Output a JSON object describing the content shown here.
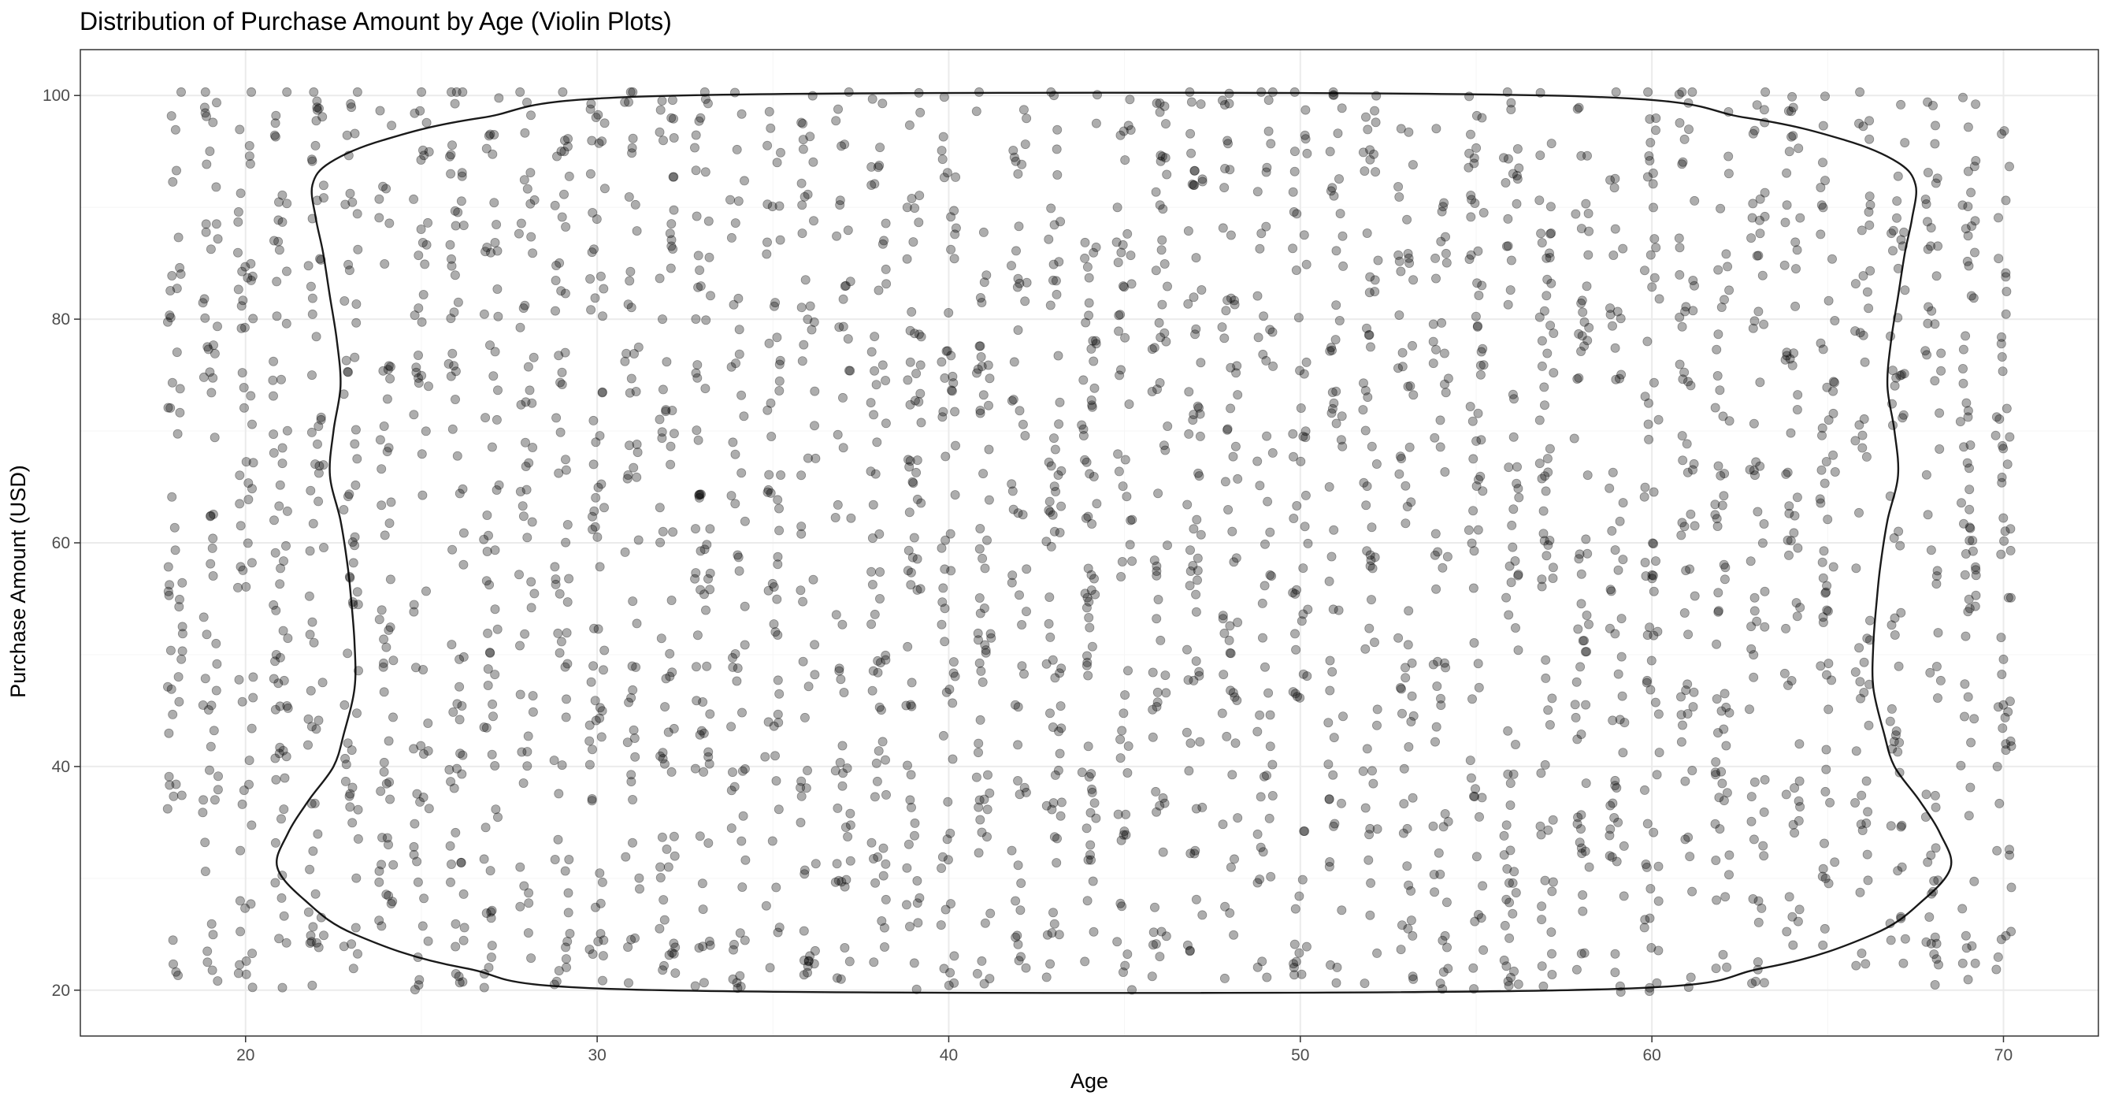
{
  "chart_data": {
    "type": "scatter",
    "title": "Distribution of Purchase Amount by Age (Violin Plots)",
    "xlabel": "Age",
    "ylabel": "Purchase Amount (USD)",
    "xlim": [
      15.3,
      72.7
    ],
    "ylim": [
      15.9,
      104.1
    ],
    "x_ticks": [
      20,
      30,
      40,
      50,
      60,
      70
    ],
    "y_ticks": [
      20,
      40,
      60,
      80,
      100
    ],
    "grid": true,
    "legend": "none",
    "colors": {
      "points": "#000000",
      "point_alpha": 0.32,
      "violin_outline": "#1a1a1a",
      "grid_major": "#ebebeb",
      "grid_minor": "#f5f5f5",
      "panel_border": "#333333",
      "tick_label": "#4d4d4d"
    },
    "ages": [
      18,
      19,
      20,
      21,
      22,
      23,
      24,
      25,
      26,
      27,
      28,
      29,
      30,
      31,
      32,
      33,
      34,
      35,
      36,
      37,
      38,
      39,
      40,
      41,
      42,
      43,
      44,
      45,
      46,
      47,
      48,
      49,
      50,
      51,
      52,
      53,
      54,
      55,
      56,
      57,
      58,
      59,
      60,
      61,
      62,
      63,
      64,
      65,
      66,
      67,
      68,
      69,
      70
    ],
    "purchase_range": [
      20,
      100
    ],
    "points_per_age_approx": 60,
    "violin": {
      "x_center": 44.7,
      "y_range": [
        20,
        100
      ],
      "profile": [
        {
          "y": 20,
          "half_width": 12.9
        },
        {
          "y": 22,
          "half_width": 18.5
        },
        {
          "y": 25,
          "half_width": 21.6
        },
        {
          "y": 28,
          "half_width": 23.0
        },
        {
          "y": 31,
          "half_width": 23.8
        },
        {
          "y": 34,
          "half_width": 23.5
        },
        {
          "y": 37,
          "half_width": 22.9
        },
        {
          "y": 40,
          "half_width": 22.2
        },
        {
          "y": 43,
          "half_width": 21.9
        },
        {
          "y": 47,
          "half_width": 21.6
        },
        {
          "y": 51,
          "half_width": 21.6
        },
        {
          "y": 55,
          "half_width": 21.7
        },
        {
          "y": 58,
          "half_width": 21.8
        },
        {
          "y": 62,
          "half_width": 22.0
        },
        {
          "y": 66,
          "half_width": 22.3
        },
        {
          "y": 70,
          "half_width": 22.2
        },
        {
          "y": 74,
          "half_width": 22.0
        },
        {
          "y": 78,
          "half_width": 22.1
        },
        {
          "y": 82,
          "half_width": 22.3
        },
        {
          "y": 86,
          "half_width": 22.5
        },
        {
          "y": 89,
          "half_width": 22.7
        },
        {
          "y": 92,
          "half_width": 22.8
        },
        {
          "y": 94,
          "half_width": 22.3
        },
        {
          "y": 96,
          "half_width": 20.8
        },
        {
          "y": 98,
          "half_width": 18.0
        },
        {
          "y": 100,
          "half_width": 12.3
        }
      ]
    }
  }
}
